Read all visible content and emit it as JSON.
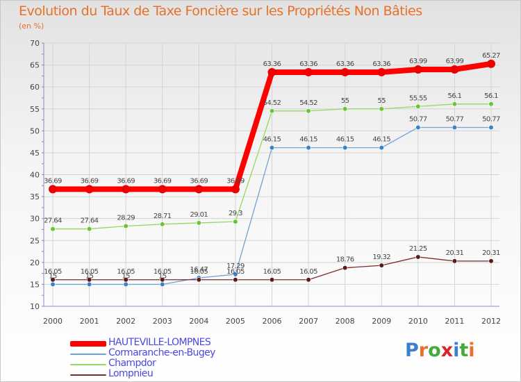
{
  "header": {
    "title": "Evolution du Taux de Taxe Foncière sur les Propriétés Non Bâties",
    "subtitle": "(en %)"
  },
  "logo": {
    "text": "Proxiti",
    "letters": [
      "P",
      "r",
      "o",
      "x",
      "i",
      "t",
      "i"
    ],
    "colors": [
      "#3a7fd0",
      "#e8702a",
      "#49a83a",
      "#d9242b",
      "#3a7fd0",
      "#49a83a",
      "#e8702a"
    ]
  },
  "chart_data": {
    "type": "line",
    "title": "Evolution du Taux de Taxe Foncière sur les Propriétés Non Bâties",
    "ylabel": "(en %)",
    "xlabel": "",
    "ylim": [
      10,
      70
    ],
    "yticks": [
      10,
      15,
      20,
      25,
      30,
      35,
      40,
      45,
      50,
      55,
      60,
      65,
      70
    ],
    "grid": true,
    "legend_position": "bottom-left",
    "x": [
      "2000",
      "2001",
      "2002",
      "2003",
      "2004",
      "2005",
      "2006",
      "2007",
      "2008",
      "2009",
      "2010",
      "2011",
      "2012"
    ],
    "series": [
      {
        "name": "Cormaranche-en-Bugey",
        "color": "#6fa2d6",
        "marker": "#3a82c4",
        "width": 1.3,
        "values": [
          15,
          15,
          15,
          15,
          16.47,
          17.29,
          46.15,
          46.15,
          46.15,
          46.15,
          50.77,
          50.77,
          50.77
        ],
        "labels": [
          "15",
          "15",
          "15",
          "15",
          "16.47",
          "17.29",
          "46.15",
          "46.15",
          "46.15",
          "46.15",
          "50.77",
          "50.77",
          "50.77"
        ]
      },
      {
        "name": "Champdor",
        "color": "#92d960",
        "marker": "#6cc33a",
        "width": 1.3,
        "values": [
          27.64,
          27.64,
          28.29,
          28.71,
          29.01,
          29.3,
          54.52,
          54.52,
          55,
          55,
          55.55,
          56.1,
          56.1
        ],
        "labels": [
          "27.64",
          "27.64",
          "28.29",
          "28.71",
          "29.01",
          "29.3",
          "54.52",
          "54.52",
          "55",
          "55",
          "55.55",
          "56.1",
          "56.1"
        ]
      },
      {
        "name": "Lompnieu",
        "color": "#7a2a2a",
        "marker": "#5c1b1b",
        "width": 1.3,
        "values": [
          16.05,
          16.05,
          16.05,
          16.05,
          16.05,
          16.05,
          16.05,
          16.05,
          18.76,
          19.32,
          21.25,
          20.31,
          20.31
        ],
        "labels": [
          "16.05",
          "16.05",
          "16.05",
          "16.05",
          "16.05",
          "16.05",
          "16.05",
          "16.05",
          "18.76",
          "19.32",
          "21.25",
          "20.31",
          "20.31"
        ]
      },
      {
        "name": "HAUTEVILLE-LOMPNES",
        "color": "#ff0000",
        "marker": "#ee0000",
        "width": 8,
        "values": [
          36.69,
          36.69,
          36.69,
          36.69,
          36.69,
          36.69,
          63.36,
          63.36,
          63.36,
          63.36,
          63.99,
          63.99,
          65.27
        ],
        "labels": [
          "36.69",
          "36.69",
          "36.69",
          "36.69",
          "36.69",
          "36.69",
          "63.36",
          "63.36",
          "63.36",
          "63.36",
          "63.99",
          "63.99",
          "65.27"
        ]
      }
    ],
    "legend": [
      {
        "name": "HAUTEVILLE-LOMPNES",
        "color": "#ff0000",
        "thickness": 8
      },
      {
        "name": "Cormaranche-en-Bugey",
        "color": "#6fa2d6",
        "thickness": 2
      },
      {
        "name": "Champdor",
        "color": "#92d960",
        "thickness": 2
      },
      {
        "name": "Lompnieu",
        "color": "#7a2a2a",
        "thickness": 2
      }
    ]
  }
}
